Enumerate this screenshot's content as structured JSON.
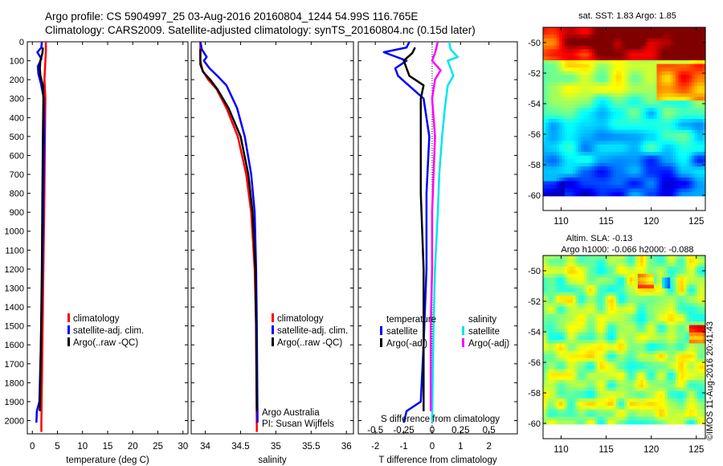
{
  "title_line1": "Argo profile: CS 5904997_25 03-Aug-2016 20160804_1244 54.99S 116.765E",
  "title_line2": "Climatology: CARS2009. Satellite-adjusted climatology: synTS_20160804.nc (0.15d later)",
  "colors": {
    "climatology": "#ff0000",
    "satellite": "#0000ff",
    "argo": "#000000",
    "sat_cyan": "#00e5ee",
    "argo_magenta": "#ff00ff"
  },
  "chart_data": [
    {
      "type": "line",
      "id": "temperature",
      "xlabel": "temperature (deg C)",
      "xlim": [
        -1,
        31
      ],
      "ylim": [
        2070,
        0
      ],
      "xticks": [
        0,
        5,
        10,
        15,
        20,
        25,
        30
      ],
      "yticks": [
        0,
        100,
        200,
        300,
        400,
        500,
        600,
        700,
        800,
        900,
        1000,
        1100,
        1200,
        1300,
        1400,
        1500,
        1600,
        1700,
        1800,
        1900,
        2000
      ],
      "legend": [
        "climatology",
        "satellite-adj. clim.",
        "Argo(..raw -QC)"
      ],
      "series": [
        {
          "name": "climatology",
          "color": "#ff0000",
          "points": [
            [
              2.7,
              0
            ],
            [
              2.7,
              50
            ],
            [
              2.6,
              100
            ],
            [
              2.5,
              150
            ],
            [
              2.4,
              200
            ],
            [
              2.6,
              300
            ],
            [
              2.5,
              500
            ],
            [
              2.4,
              800
            ],
            [
              2.2,
              1200
            ],
            [
              2.0,
              1600
            ],
            [
              1.8,
              2000
            ],
            [
              1.8,
              2060
            ]
          ]
        },
        {
          "name": "satellite-adj. clim.",
          "color": "#0000ff",
          "points": [
            [
              1.9,
              0
            ],
            [
              1.8,
              30
            ],
            [
              1.0,
              55
            ],
            [
              1.8,
              90
            ],
            [
              1.1,
              130
            ],
            [
              1.2,
              170
            ],
            [
              1.7,
              220
            ],
            [
              2.3,
              300
            ],
            [
              2.4,
              500
            ],
            [
              2.2,
              800
            ],
            [
              2.0,
              1200
            ],
            [
              1.7,
              1600
            ],
            [
              1.4,
              1900
            ],
            [
              0.9,
              1950
            ],
            [
              0.8,
              2010
            ]
          ]
        },
        {
          "name": "Argo(..raw -QC)",
          "color": "#000000",
          "points": [
            [
              2.1,
              30
            ],
            [
              2.0,
              60
            ],
            [
              1.6,
              100
            ],
            [
              1.5,
              140
            ],
            [
              1.6,
              180
            ],
            [
              2.1,
              230
            ],
            [
              2.2,
              300
            ],
            [
              2.1,
              500
            ],
            [
              2.0,
              800
            ],
            [
              1.9,
              1200
            ],
            [
              1.7,
              1600
            ],
            [
              1.5,
              1950
            ]
          ]
        }
      ]
    },
    {
      "type": "line",
      "id": "salinity",
      "xlabel": "salinity",
      "xlim": [
        33.8,
        36.1
      ],
      "ylim": [
        2070,
        0
      ],
      "xticks": [
        34,
        34.5,
        35,
        35.5,
        36
      ],
      "legend": [
        "climatology",
        "satellite-adj. clim.",
        "Argo(..raw -QC)"
      ],
      "annotation": [
        "Argo Australia",
        "PI: Susan Wijffels"
      ],
      "series": [
        {
          "name": "climatology",
          "color": "#ff0000",
          "points": [
            [
              33.93,
              0
            ],
            [
              33.93,
              100
            ],
            [
              33.96,
              150
            ],
            [
              34.04,
              200
            ],
            [
              34.16,
              250
            ],
            [
              34.3,
              350
            ],
            [
              34.46,
              500
            ],
            [
              34.58,
              700
            ],
            [
              34.65,
              900
            ],
            [
              34.7,
              1200
            ],
            [
              34.72,
              1500
            ],
            [
              34.73,
              2060
            ]
          ]
        },
        {
          "name": "satellite-adj. clim.",
          "color": "#0000ff",
          "points": [
            [
              33.93,
              0
            ],
            [
              33.95,
              40
            ],
            [
              34.02,
              80
            ],
            [
              33.98,
              100
            ],
            [
              34.06,
              140
            ],
            [
              34.17,
              180
            ],
            [
              34.3,
              230
            ],
            [
              34.45,
              350
            ],
            [
              34.56,
              500
            ],
            [
              34.65,
              700
            ],
            [
              34.7,
              900
            ],
            [
              34.72,
              1200
            ],
            [
              34.73,
              1500
            ],
            [
              34.74,
              2010
            ]
          ]
        },
        {
          "name": "Argo(..raw -QC)",
          "color": "#000000",
          "points": [
            [
              33.93,
              40
            ],
            [
              33.93,
              120
            ],
            [
              33.97,
              160
            ],
            [
              34.07,
              200
            ],
            [
              34.17,
              250
            ],
            [
              34.33,
              350
            ],
            [
              34.5,
              500
            ],
            [
              34.61,
              700
            ],
            [
              34.67,
              900
            ],
            [
              34.71,
              1200
            ],
            [
              34.72,
              1500
            ],
            [
              34.73,
              1950
            ]
          ]
        }
      ]
    },
    {
      "type": "line",
      "id": "difference",
      "xlabel": "T difference from climatology",
      "xlabel_top": "S difference from climatology",
      "xlim": [
        -2.6,
        3
      ],
      "ylim": [
        2070,
        0
      ],
      "xticks": [
        -2,
        -1,
        0,
        1,
        2
      ],
      "xticks_top": [
        -0.5,
        -0.25,
        0,
        0.25,
        0.5
      ],
      "legend_temperature": {
        "title": "temperature",
        "items": [
          "satellite",
          "Argo(-adj)"
        ]
      },
      "legend_salinity": {
        "title": "salinity",
        "items": [
          "satellite",
          "Argo(-adj)"
        ]
      },
      "series": [
        {
          "name": "temperature satellite",
          "color": "#0000ff",
          "points": [
            [
              -0.8,
              0
            ],
            [
              -0.9,
              30
            ],
            [
              -1.7,
              55
            ],
            [
              -0.9,
              100
            ],
            [
              -1.3,
              140
            ],
            [
              -1.2,
              180
            ],
            [
              -0.9,
              220
            ],
            [
              -0.3,
              300
            ],
            [
              -0.1,
              500
            ],
            [
              -0.2,
              800
            ],
            [
              -0.2,
              1200
            ],
            [
              -0.3,
              1600
            ],
            [
              -0.4,
              1900
            ],
            [
              -0.9,
              1950
            ],
            [
              -1.0,
              2010
            ]
          ]
        },
        {
          "name": "temperature Argo(-adj)",
          "color": "#000000",
          "points": [
            [
              -0.6,
              30
            ],
            [
              -0.7,
              60
            ],
            [
              -1.0,
              100
            ],
            [
              -0.9,
              140
            ],
            [
              -0.8,
              180
            ],
            [
              -0.3,
              230
            ],
            [
              -0.4,
              300
            ],
            [
              -0.4,
              500
            ],
            [
              -0.4,
              800
            ],
            [
              -0.3,
              1200
            ],
            [
              -0.3,
              1600
            ],
            [
              -0.3,
              1950
            ]
          ]
        },
        {
          "name": "salinity satellite",
          "color": "#00e5ee",
          "points": [
            [
              0.6,
              0
            ],
            [
              0.65,
              40
            ],
            [
              0.9,
              80
            ],
            [
              0.55,
              100
            ],
            [
              0.65,
              140
            ],
            [
              0.75,
              180
            ],
            [
              0.55,
              230
            ],
            [
              0.45,
              350
            ],
            [
              0.35,
              500
            ],
            [
              0.25,
              700
            ],
            [
              0.2,
              900
            ],
            [
              0.1,
              1200
            ],
            [
              0.05,
              1500
            ],
            [
              0.0,
              2010
            ]
          ]
        },
        {
          "name": "salinity Argo(-adj)",
          "color": "#ff00ff",
          "points": [
            [
              0.2,
              0
            ],
            [
              0.1,
              60
            ],
            [
              0.0,
              100
            ],
            [
              0.3,
              150
            ],
            [
              0.1,
              200
            ],
            [
              0.0,
              300
            ],
            [
              0.1,
              500
            ],
            [
              0.05,
              700
            ],
            [
              0.0,
              900
            ],
            [
              0.0,
              1200
            ],
            [
              -0.05,
              1500
            ],
            [
              -0.05,
              1950
            ]
          ]
        }
      ]
    },
    {
      "type": "heatmap",
      "id": "sst_map",
      "title": "sat. SST: 1.83 Argo: 1.85",
      "xlim": [
        108,
        126
      ],
      "ylim": [
        -61,
        -49
      ],
      "xticks": [
        110,
        115,
        120,
        125
      ],
      "yticks": [
        -50,
        -52,
        -54,
        -56,
        -58,
        -60
      ]
    },
    {
      "type": "heatmap",
      "id": "sla_map",
      "title_line1": "Altim. SLA: -0.13",
      "title_line2": "Argo h1000: -0.066 h2000: -0.088",
      "xlim": [
        108,
        126
      ],
      "ylim": [
        -61,
        -49
      ],
      "xticks": [
        110,
        115,
        120,
        125
      ],
      "yticks": [
        -50,
        -52,
        -54,
        -56,
        -58,
        -60
      ]
    }
  ],
  "side_text": "©IMOS 11-Aug-2016 20:41:43"
}
